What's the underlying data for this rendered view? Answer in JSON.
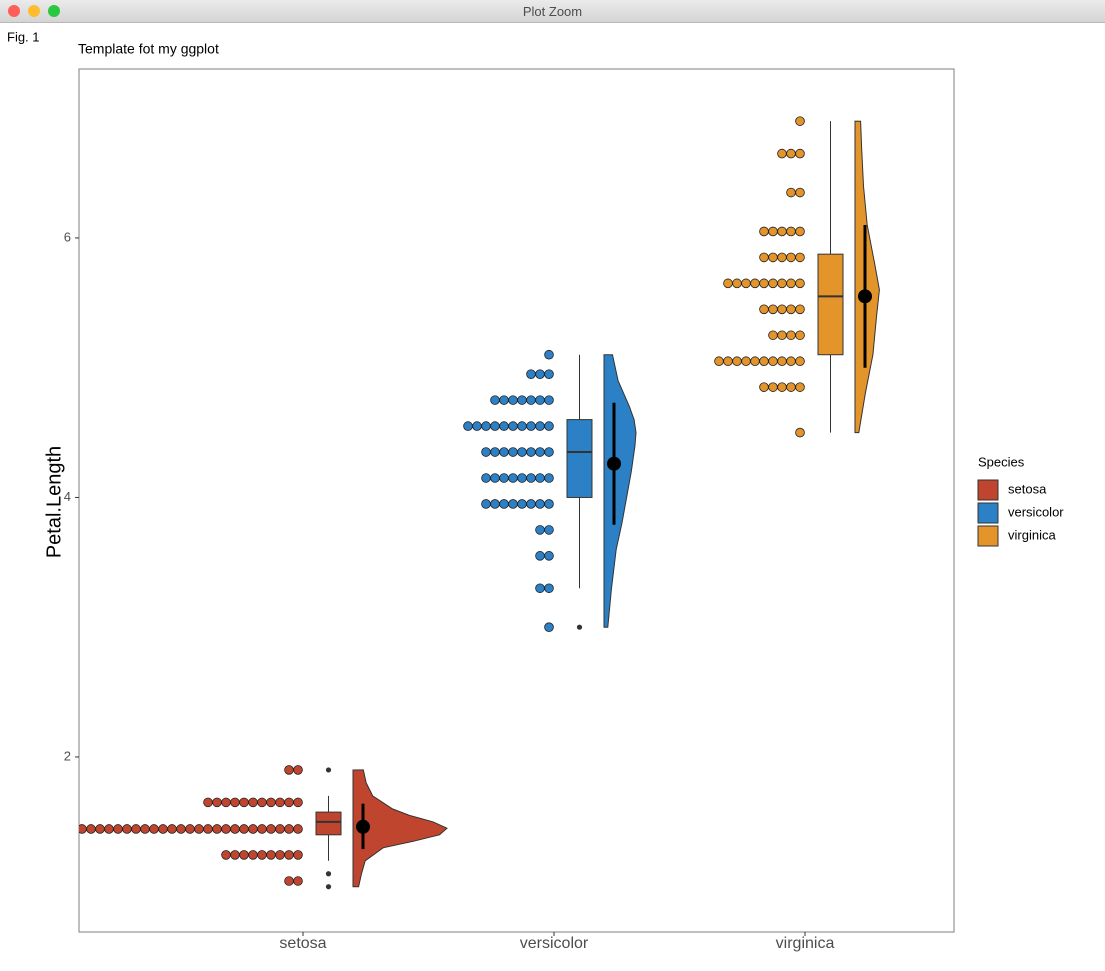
{
  "window_title": "Plot Zoom",
  "chart_data": {
    "type": "raincloud",
    "tag": "Fig. 1",
    "title": "Template fot my ggplot",
    "y_label": "Petal.Length",
    "legend_title": "Species",
    "categories": [
      "setosa",
      "versicolor",
      "virginica"
    ],
    "ylim": [
      0.651,
      7.302
    ],
    "yticks": [
      2,
      4,
      6
    ],
    "series": [
      {
        "name": "setosa",
        "color": "#c0452f",
        "dots": {
          "values": [
            1.9,
            1.65,
            1.445,
            1.245,
            1.044
          ],
          "counts": [
            2,
            11,
            26,
            9,
            2
          ]
        },
        "box": {
          "q1": 1.4,
          "median": 1.5,
          "q3": 1.575,
          "whisker_low": 1.2,
          "whisker_high": 1.7,
          "outliers": [
            1.0,
            1.1,
            1.9
          ]
        },
        "mean": 1.462,
        "sd_low": 1.29,
        "sd_high": 1.64,
        "density": {
          "y": [
            1.0,
            1.1,
            1.2,
            1.3,
            1.35,
            1.4,
            1.45,
            1.5,
            1.55,
            1.6,
            1.7,
            1.8,
            1.9
          ],
          "values": [
            0.06,
            0.09,
            0.13,
            0.32,
            0.64,
            0.92,
            1.0,
            0.85,
            0.6,
            0.42,
            0.21,
            0.14,
            0.11
          ]
        }
      },
      {
        "name": "versicolor",
        "color": "#2c80c5",
        "dots": {
          "values": [
            5.1,
            4.95,
            4.75,
            4.55,
            4.35,
            4.15,
            3.95,
            3.75,
            3.55,
            3.3,
            3.0
          ],
          "counts": [
            1,
            3,
            7,
            10,
            8,
            8,
            8,
            2,
            2,
            2,
            1
          ]
        },
        "box": {
          "q1": 4.0,
          "median": 4.35,
          "q3": 4.6,
          "whisker_low": 3.3,
          "whisker_high": 5.1,
          "outliers": [
            3.0
          ]
        },
        "mean": 4.26,
        "sd_low": 3.79,
        "sd_high": 4.73,
        "density": {
          "y": [
            3.0,
            3.3,
            3.6,
            3.8,
            4.0,
            4.2,
            4.4,
            4.5,
            4.6,
            4.7,
            4.9,
            5.1
          ],
          "values": [
            0.04,
            0.08,
            0.13,
            0.19,
            0.24,
            0.29,
            0.33,
            0.34,
            0.32,
            0.27,
            0.15,
            0.09
          ]
        }
      },
      {
        "name": "virginica",
        "color": "#e3942a",
        "dots": {
          "values": [
            6.9,
            6.65,
            6.35,
            6.05,
            5.85,
            5.65,
            5.45,
            5.25,
            5.05,
            4.85,
            4.5
          ],
          "counts": [
            1,
            3,
            2,
            5,
            5,
            9,
            5,
            4,
            10,
            5,
            1
          ]
        },
        "box": {
          "q1": 5.1,
          "median": 5.55,
          "q3": 5.875,
          "whisker_low": 4.5,
          "whisker_high": 6.9,
          "outliers": []
        },
        "mean": 5.55,
        "sd_low": 5.0,
        "sd_high": 6.1,
        "density": {
          "y": [
            4.5,
            4.8,
            5.1,
            5.4,
            5.6,
            5.8,
            6.1,
            6.4,
            6.7,
            6.9
          ],
          "values": [
            0.04,
            0.11,
            0.19,
            0.23,
            0.26,
            0.21,
            0.13,
            0.09,
            0.07,
            0.06
          ]
        }
      }
    ]
  }
}
